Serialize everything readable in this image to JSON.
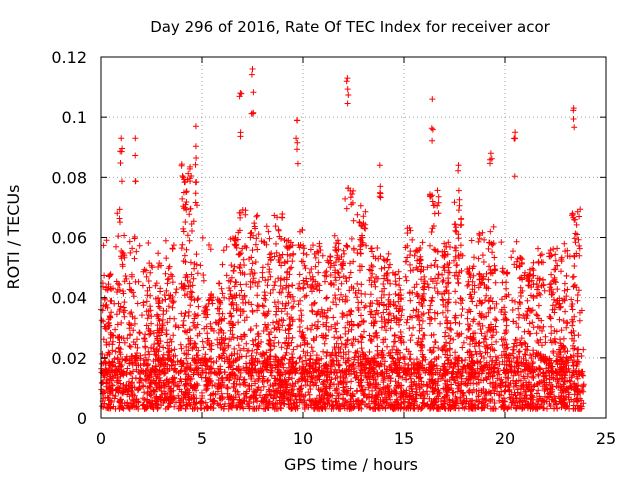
{
  "chart_data": {
    "type": "scatter",
    "title": "Day 296 of 2016, Rate Of TEC Index for receiver acor",
    "xlabel": "GPS time / hours",
    "ylabel": "ROTI / TECUs",
    "xlim": [
      0,
      25
    ],
    "ylim": [
      0,
      0.12
    ],
    "xticks": [
      0,
      5,
      10,
      15,
      20,
      25
    ],
    "xtick_labels": [
      "0",
      "5",
      "10",
      "15",
      "20",
      "25"
    ],
    "yticks": [
      0,
      0.02,
      0.04,
      0.06,
      0.08,
      0.1,
      0.12
    ],
    "ytick_labels": [
      "0",
      "0.02",
      "0.04",
      "0.06",
      "0.08",
      "0.1",
      "0.12"
    ],
    "grid": true,
    "marker": "+",
    "series_color": "#ff0000",
    "data_x_range": [
      0,
      23.9
    ],
    "baseline_band": [
      0.003,
      0.02
    ],
    "notable_points": [
      {
        "x": 7.5,
        "y": 0.116
      },
      {
        "x": 12.2,
        "y": 0.113
      },
      {
        "x": 6.9,
        "y": 0.108
      },
      {
        "x": 16.4,
        "y": 0.106
      },
      {
        "x": 23.4,
        "y": 0.103
      },
      {
        "x": 9.7,
        "y": 0.099
      },
      {
        "x": 4.7,
        "y": 0.097
      },
      {
        "x": 20.5,
        "y": 0.095
      },
      {
        "x": 1.7,
        "y": 0.093
      },
      {
        "x": 1.0,
        "y": 0.093
      },
      {
        "x": 19.3,
        "y": 0.088
      },
      {
        "x": 13.8,
        "y": 0.084
      },
      {
        "x": 17.7,
        "y": 0.084
      }
    ],
    "cluster_peaks": [
      {
        "x": 0.3,
        "y": 0.048
      },
      {
        "x": 1.0,
        "y": 0.07
      },
      {
        "x": 1.6,
        "y": 0.063
      },
      {
        "x": 2.3,
        "y": 0.052
      },
      {
        "x": 2.9,
        "y": 0.045
      },
      {
        "x": 3.4,
        "y": 0.058
      },
      {
        "x": 4.2,
        "y": 0.086
      },
      {
        "x": 4.6,
        "y": 0.082
      },
      {
        "x": 5.3,
        "y": 0.042
      },
      {
        "x": 5.9,
        "y": 0.047
      },
      {
        "x": 6.5,
        "y": 0.06
      },
      {
        "x": 7.0,
        "y": 0.07
      },
      {
        "x": 7.6,
        "y": 0.068
      },
      {
        "x": 8.2,
        "y": 0.065
      },
      {
        "x": 8.8,
        "y": 0.068
      },
      {
        "x": 9.3,
        "y": 0.06
      },
      {
        "x": 10.0,
        "y": 0.063
      },
      {
        "x": 10.6,
        "y": 0.058
      },
      {
        "x": 11.2,
        "y": 0.055
      },
      {
        "x": 11.8,
        "y": 0.062
      },
      {
        "x": 12.3,
        "y": 0.077
      },
      {
        "x": 12.9,
        "y": 0.072
      },
      {
        "x": 13.5,
        "y": 0.058
      },
      {
        "x": 14.1,
        "y": 0.055
      },
      {
        "x": 14.7,
        "y": 0.05
      },
      {
        "x": 15.3,
        "y": 0.064
      },
      {
        "x": 15.8,
        "y": 0.06
      },
      {
        "x": 16.5,
        "y": 0.08
      },
      {
        "x": 17.1,
        "y": 0.058
      },
      {
        "x": 17.7,
        "y": 0.075
      },
      {
        "x": 18.3,
        "y": 0.05
      },
      {
        "x": 18.9,
        "y": 0.062
      },
      {
        "x": 19.4,
        "y": 0.064
      },
      {
        "x": 20.0,
        "y": 0.05
      },
      {
        "x": 20.6,
        "y": 0.06
      },
      {
        "x": 21.2,
        "y": 0.05
      },
      {
        "x": 21.8,
        "y": 0.052
      },
      {
        "x": 22.4,
        "y": 0.058
      },
      {
        "x": 22.9,
        "y": 0.055
      },
      {
        "x": 23.5,
        "y": 0.07
      }
    ]
  }
}
